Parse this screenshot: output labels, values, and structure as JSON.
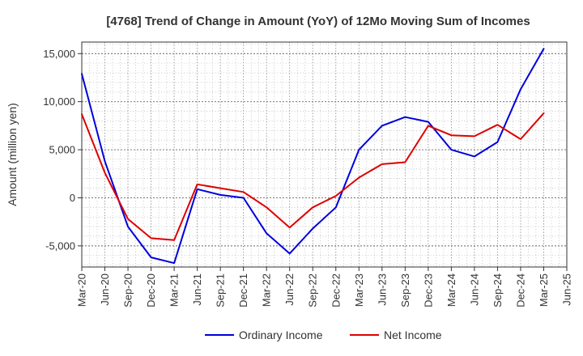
{
  "chart_data": {
    "type": "line",
    "title": "[4768]  Trend of Change in Amount (YoY) of 12Mo Moving Sum of Incomes",
    "xlabel": "",
    "ylabel": "Amount (million yen)",
    "ylim": [
      -7200,
      16200
    ],
    "yticks": [
      -5000,
      0,
      5000,
      10000,
      15000
    ],
    "ytick_labels": [
      "-5,000",
      "0",
      "5,000",
      "10,000",
      "15,000"
    ],
    "x": [
      "Mar-20",
      "Jun-20",
      "Sep-20",
      "Dec-20",
      "Mar-21",
      "Jun-21",
      "Sep-21",
      "Dec-21",
      "Mar-22",
      "Jun-22",
      "Sep-22",
      "Dec-22",
      "Mar-23",
      "Jun-23",
      "Sep-23",
      "Dec-23",
      "Mar-24",
      "Jun-24",
      "Sep-24",
      "Dec-24",
      "Mar-25",
      "Jun-25"
    ],
    "grid": true,
    "legend_position": "bottom",
    "series": [
      {
        "name": "Ordinary Income",
        "color": "#0000dd",
        "values": [
          12900,
          3800,
          -3000,
          -6200,
          -6800,
          900,
          300,
          0,
          -3700,
          -5800,
          -3200,
          -1000,
          5000,
          7500,
          8400,
          7900,
          5000,
          4300,
          5800,
          11300,
          15500,
          null
        ]
      },
      {
        "name": "Net Income",
        "color": "#dd0000",
        "values": [
          8700,
          2600,
          -2200,
          -4200,
          -4400,
          1400,
          1000,
          600,
          -1000,
          -3100,
          -1000,
          200,
          2100,
          3500,
          3700,
          7500,
          6500,
          6400,
          7600,
          6100,
          8800,
          null
        ]
      }
    ]
  }
}
